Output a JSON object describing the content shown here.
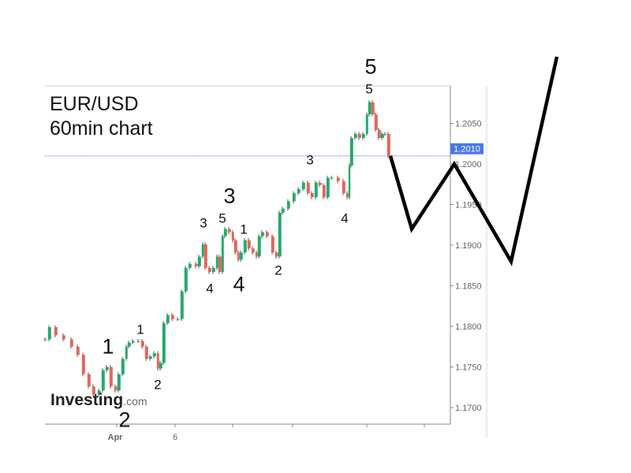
{
  "chart_data": {
    "type": "candlestick",
    "title": "EUR/USD",
    "subtitle": "60min chart",
    "ylim": [
      1.1672,
      1.2101
    ],
    "y_ticks": [
      "1.2050",
      "1.2000",
      "1.1950",
      "1.1900",
      "1.1850",
      "1.1800",
      "1.1750",
      "1.1700"
    ],
    "x_tick_labels": [
      "Apr",
      "6"
    ],
    "current_price": "1.2010",
    "grid": false,
    "colors": {
      "up": "#26a96c",
      "down": "#e0675a",
      "wick": "#333333",
      "price_line": "#4a77e8",
      "projection": "#000000"
    },
    "closes": [
      1.1784,
      1.1799,
      1.1789,
      1.1784,
      1.1775,
      1.1765,
      1.1741,
      1.1726,
      1.1716,
      1.1721,
      1.1746,
      1.175,
      1.1726,
      1.1721,
      1.1741,
      1.176,
      1.1775,
      1.178,
      1.1782,
      1.1782,
      1.1775,
      1.176,
      1.1763,
      1.1767,
      1.1748,
      1.1755,
      1.1804,
      1.1814,
      1.1809,
      1.1809,
      1.1843,
      1.1872,
      1.1877,
      1.1874,
      1.1886,
      1.1901,
      1.1872,
      1.1867,
      1.1872,
      1.1886,
      1.1867,
      1.1911,
      1.192,
      1.1916,
      1.1906,
      1.1891,
      1.1882,
      1.1891,
      1.1906,
      1.1896,
      1.1891,
      1.1886,
      1.1911,
      1.1916,
      1.1911,
      1.1891,
      1.1886,
      1.194,
      1.1945,
      1.1954,
      1.1964,
      1.1969,
      1.1977,
      1.1964,
      1.1959,
      1.1977,
      1.1974,
      1.1959,
      1.1983,
      1.1983,
      1.1979,
      1.1964,
      1.1959,
      1.1998,
      1.2032,
      1.2037,
      1.2032,
      1.2037,
      1.2061,
      1.2076,
      1.2061,
      1.2042,
      1.2032,
      1.2037,
      1.2037,
      1.201
    ],
    "projection_prices": [
      1.201,
      1.192,
      1.2,
      1.188
    ],
    "wave_labels": [
      "1",
      "2",
      "1",
      "2",
      "3",
      "4",
      "5",
      "3",
      "1",
      "4",
      "2",
      "3",
      "4",
      "5",
      "5"
    ]
  },
  "branding": {
    "logo_main": "Investing",
    "logo_suffix": ".com"
  }
}
